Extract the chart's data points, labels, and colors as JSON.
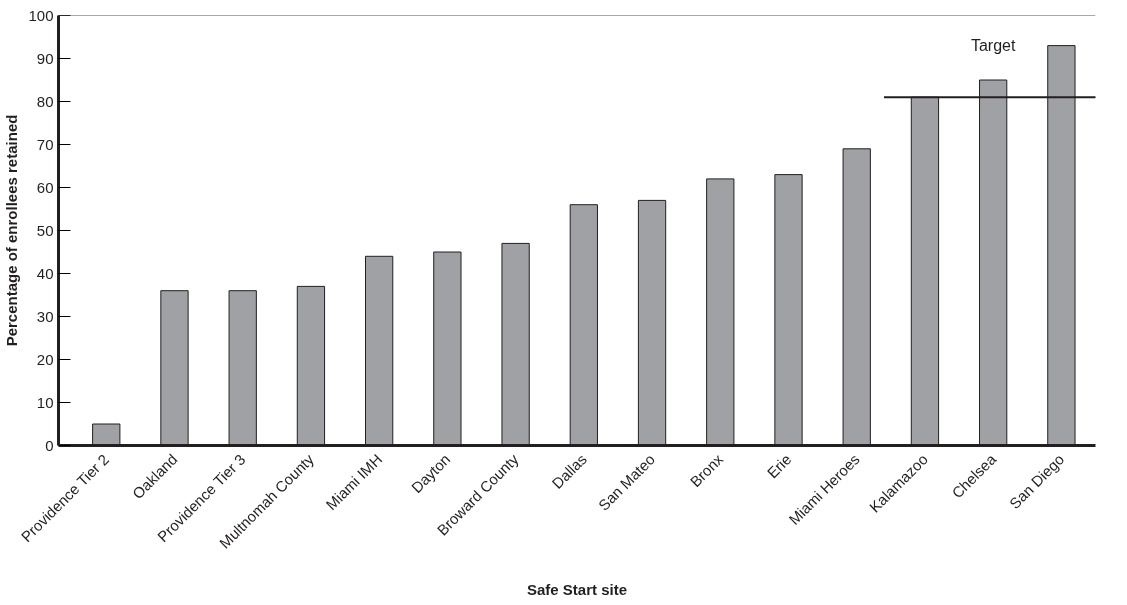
{
  "chart_data": {
    "type": "bar",
    "xlabel": "Safe Start site",
    "ylabel": "Percentage of enrollees retained",
    "categories": [
      "Providence Tier 2",
      "Oakland",
      "Providence Tier 3",
      "Multnomah County",
      "Miami IMH",
      "Dayton",
      "Broward County",
      "Dallas",
      "San Mateo",
      "Bronx",
      "Erie",
      "Miami Heroes",
      "Kalamazoo",
      "Chelsea",
      "San Diego"
    ],
    "values": [
      5,
      36,
      36,
      37,
      44,
      45,
      47,
      56,
      57,
      62,
      63,
      69,
      81,
      85,
      93
    ],
    "color": "#a0a1a5",
    "ylim": [
      0,
      100
    ],
    "yticks": [
      0,
      10,
      20,
      30,
      40,
      50,
      60,
      70,
      80,
      90,
      100
    ],
    "ref_lines": [
      {
        "axis": "y",
        "value": 81,
        "label": "Target",
        "color": "#231f20"
      }
    ],
    "grid": false
  }
}
